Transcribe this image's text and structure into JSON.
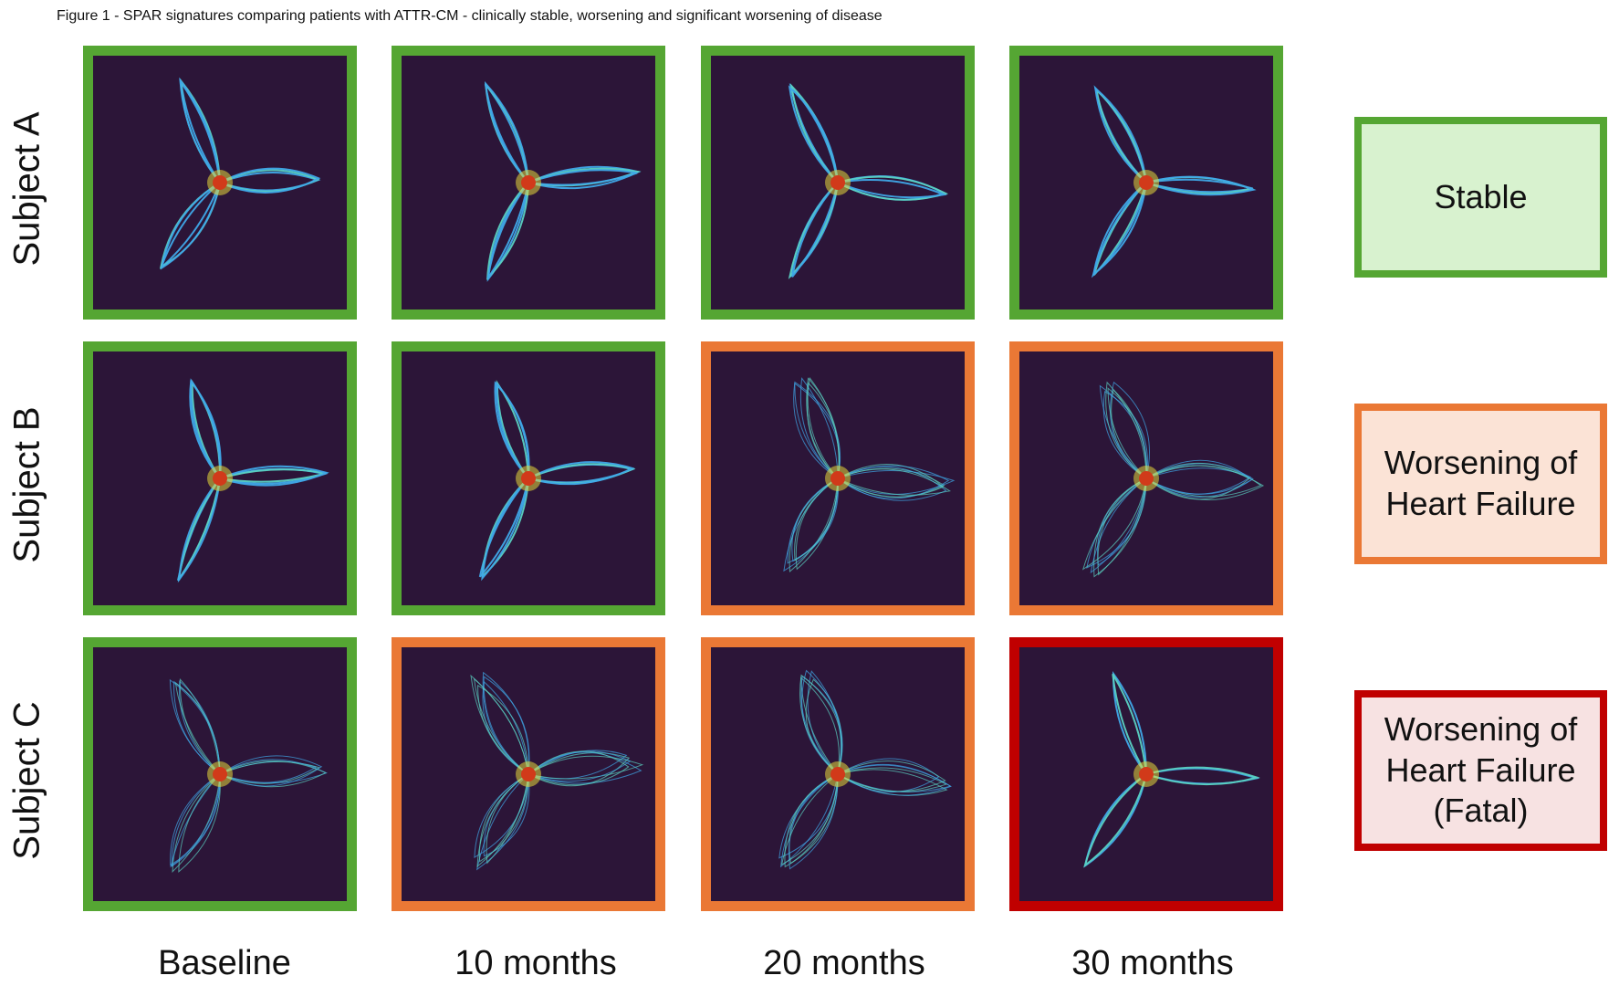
{
  "figure": {
    "caption": "Figure 1 - SPAR signatures comparing patients with ATTR-CM - clinically stable, worsening and significant worsening of disease"
  },
  "rows": [
    {
      "label": "Subject A",
      "statuses": [
        "stable",
        "stable",
        "stable",
        "stable"
      ]
    },
    {
      "label": "Subject B",
      "statuses": [
        "stable",
        "stable",
        "worsening",
        "worsening"
      ]
    },
    {
      "label": "Subject C",
      "statuses": [
        "stable",
        "worsening",
        "worsening",
        "fatal"
      ]
    }
  ],
  "columns": [
    "Baseline",
    "10 months",
    "20 months",
    "30 months"
  ],
  "legend": [
    {
      "key": "stable",
      "label": "Stable",
      "border_color": "#55a633",
      "fill_color": "#d8f2cf"
    },
    {
      "key": "worsening",
      "label": "Worsening of\nHeart Failure",
      "border_color": "#ea7835",
      "fill_color": "#fbe3d6"
    },
    {
      "key": "fatal",
      "label": "Worsening of\nHeart Failure\n(Fatal)",
      "border_color": "#c00000",
      "fill_color": "#f7e2e2"
    }
  ],
  "panel_colors": {
    "background": "#2c1538",
    "trace": "#3fa8e8",
    "trace_alt": "#5ad1c2",
    "hot": "#d13a1a",
    "warm": "#e8d83a"
  }
}
